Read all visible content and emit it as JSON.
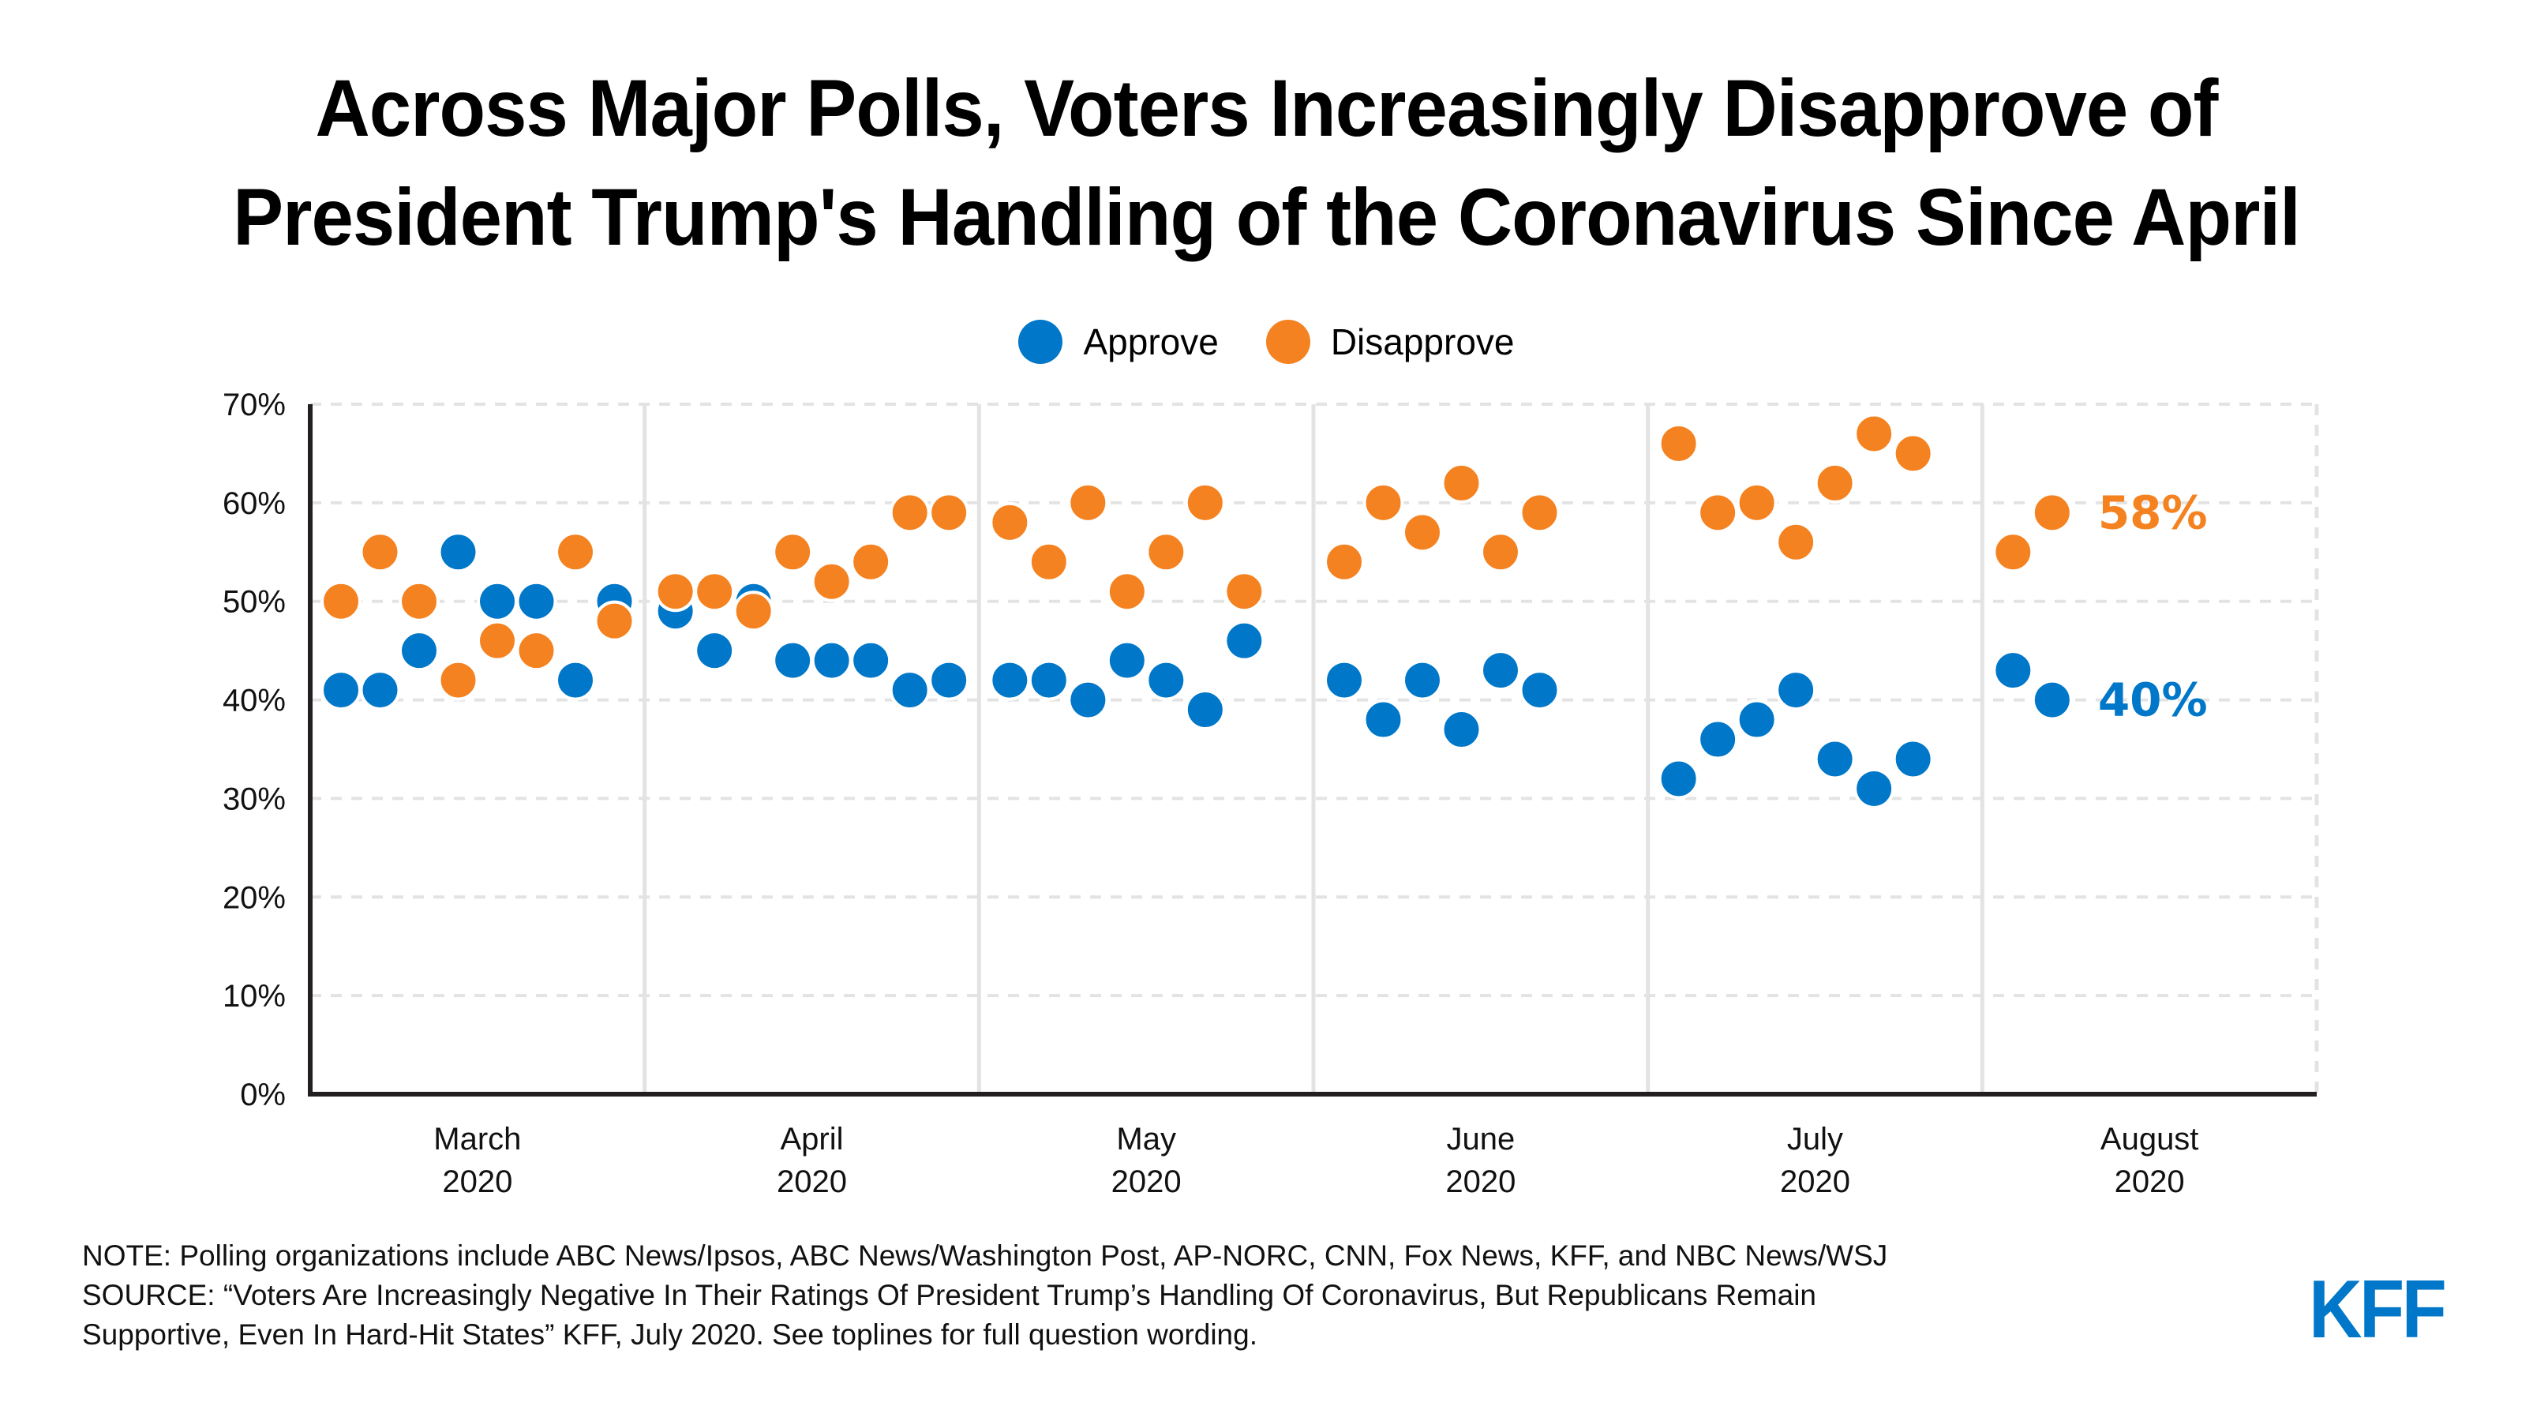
{
  "title": {
    "line1": "Across Major Polls, Voters Increasingly Disapprove of",
    "line2": "President Trump's Handling of the Coronavirus Since April"
  },
  "colors": {
    "approve": "#0077C8",
    "disapprove": "#F58220",
    "gridline": "#E3E3E3",
    "axis": "#231F20",
    "logo": "#0077C8"
  },
  "legend": [
    {
      "key": "approve",
      "label": "Approve"
    },
    {
      "key": "disapprove",
      "label": "Disapprove"
    }
  ],
  "chart_data": {
    "type": "scatter",
    "title": "Across Major Polls, Voters Increasingly Disapprove of President Trump's Handling of the Coronavirus Since April",
    "xlabel": "",
    "ylabel": "",
    "ylim": [
      0,
      70
    ],
    "yticks": [
      0,
      10,
      20,
      30,
      40,
      50,
      60,
      70
    ],
    "ytick_labels": [
      "0%",
      "10%",
      "20%",
      "30%",
      "40%",
      "50%",
      "60%",
      "70%"
    ],
    "grid": true,
    "legend_position": "top-center",
    "categories": [
      {
        "month": "March",
        "year": "2020"
      },
      {
        "month": "April",
        "year": "2020"
      },
      {
        "month": "May",
        "year": "2020"
      },
      {
        "month": "June",
        "year": "2020"
      },
      {
        "month": "July",
        "year": "2020"
      },
      {
        "month": "August",
        "year": "2020"
      }
    ],
    "series": [
      {
        "name": "Approve",
        "key": "approve",
        "values_by_month": [
          [
            41,
            41,
            45,
            55,
            50,
            50,
            42,
            50
          ],
          [
            49,
            45,
            50,
            44,
            44,
            44,
            41,
            42
          ],
          [
            42,
            42,
            40,
            44,
            42,
            39,
            46
          ],
          [
            42,
            38,
            42,
            37,
            43,
            41
          ],
          [
            32,
            36,
            38,
            41,
            34,
            31,
            34
          ],
          [
            43,
            40
          ]
        ],
        "end_label": "40%"
      },
      {
        "name": "Disapprove",
        "key": "disapprove",
        "values_by_month": [
          [
            50,
            55,
            50,
            42,
            46,
            45,
            55,
            48
          ],
          [
            51,
            51,
            49,
            55,
            52,
            54,
            59,
            59
          ],
          [
            58,
            54,
            60,
            51,
            55,
            60,
            51
          ],
          [
            54,
            60,
            57,
            62,
            55,
            59
          ],
          [
            66,
            59,
            60,
            56,
            62,
            67,
            65
          ],
          [
            55,
            59
          ]
        ],
        "end_label": "58%"
      }
    ]
  },
  "footnote": {
    "note": "NOTE: Polling organizations include ABC News/Ipsos, ABC News/Washington Post, AP-NORC, CNN, Fox News, KFF, and NBC News/WSJ",
    "source_line1": "SOURCE: “Voters Are Increasingly Negative In Their Ratings Of President Trump’s Handling Of Coronavirus, But Republicans Remain",
    "source_line2": "Supportive, Even In Hard-Hit States” KFF, July 2020. See toplines for full question wording."
  },
  "logo": {
    "text": "KFF",
    "icon": "kff-logo"
  }
}
